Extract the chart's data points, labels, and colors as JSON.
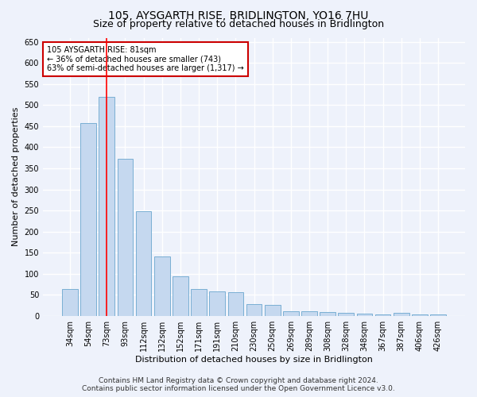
{
  "title": "105, AYSGARTH RISE, BRIDLINGTON, YO16 7HU",
  "subtitle": "Size of property relative to detached houses in Bridlington",
  "xlabel": "Distribution of detached houses by size in Bridlington",
  "ylabel": "Number of detached properties",
  "categories": [
    "34sqm",
    "54sqm",
    "73sqm",
    "93sqm",
    "112sqm",
    "132sqm",
    "152sqm",
    "171sqm",
    "191sqm",
    "210sqm",
    "230sqm",
    "250sqm",
    "269sqm",
    "289sqm",
    "308sqm",
    "328sqm",
    "348sqm",
    "367sqm",
    "387sqm",
    "406sqm",
    "426sqm"
  ],
  "values": [
    63,
    458,
    520,
    372,
    249,
    140,
    93,
    63,
    58,
    56,
    27,
    26,
    11,
    11,
    8,
    7,
    5,
    4,
    7,
    3,
    4
  ],
  "bar_color": "#c5d8ef",
  "bar_edge_color": "#7aafd4",
  "red_line_x": 2,
  "annotation_text": "105 AYSGARTH RISE: 81sqm\n← 36% of detached houses are smaller (743)\n63% of semi-detached houses are larger (1,317) →",
  "annotation_box_color": "#ffffff",
  "annotation_box_edge": "#cc0000",
  "ylim": [
    0,
    660
  ],
  "yticks": [
    0,
    50,
    100,
    150,
    200,
    250,
    300,
    350,
    400,
    450,
    500,
    550,
    600,
    650
  ],
  "footer_line1": "Contains HM Land Registry data © Crown copyright and database right 2024.",
  "footer_line2": "Contains public sector information licensed under the Open Government Licence v3.0.",
  "bg_color": "#eef2fb",
  "plot_bg_color": "#eef2fb",
  "grid_color": "#ffffff",
  "title_fontsize": 10,
  "subtitle_fontsize": 9,
  "axis_label_fontsize": 8,
  "tick_fontsize": 7,
  "annotation_fontsize": 7,
  "footer_fontsize": 6.5
}
